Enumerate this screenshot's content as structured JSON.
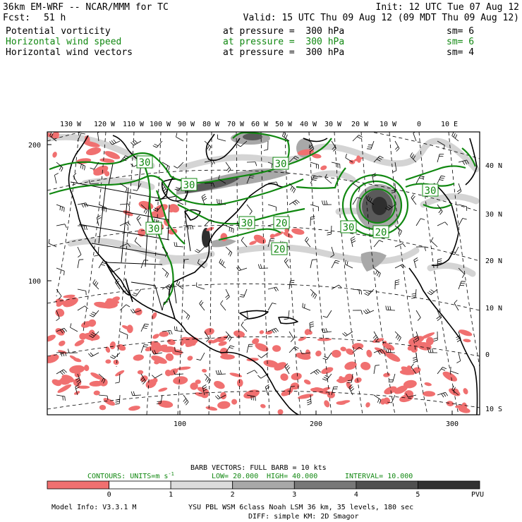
{
  "header": {
    "line1_left": "36km EM-WRF -- NCAR/MMM for TC",
    "line1_right": "Init: 12 UTC Tue 07 Aug 12",
    "fcst_label": "Fcst:",
    "fcst_value": "51 h",
    "valid": "Valid: 15 UTC Thu 09 Aug 12 (09 MDT Thu 09 Aug 12)",
    "fields": [
      {
        "name": "Potential vorticity",
        "level": "at pressure =  300 hPa",
        "sm": "sm= 6",
        "color": "#000000"
      },
      {
        "name": "Horizontal wind speed",
        "level": "at pressure =  300 hPa",
        "sm": "sm= 6",
        "color": "#118811"
      },
      {
        "name": "Horizontal wind vectors",
        "level": "at pressure =  300 hPa",
        "sm": "sm= 4",
        "color": "#000000"
      }
    ]
  },
  "axes": {
    "top_lon_labels": [
      "130 W",
      "120 W",
      "110 W",
      "100 W",
      "90 W",
      "80 W",
      "70 W",
      "60 W",
      "50 W",
      "40 W",
      "30 W",
      "20 W",
      "10 W",
      "0",
      "10 E"
    ],
    "right_lat_labels": [
      "40 N",
      "30 N",
      "20 N",
      "10 N",
      "0",
      "10 S"
    ],
    "left_grid_labels": [
      "200",
      "100"
    ],
    "bottom_grid_labels": [
      "100",
      "200",
      "300"
    ]
  },
  "contour_labels": [
    "30",
    "30",
    "30",
    "30",
    "30",
    "30",
    "20",
    "20",
    "20",
    "30"
  ],
  "legend": {
    "barb_line": "BARB VECTORS:  FULL BARB = 10 kts",
    "contours_label": "CONTOURS:  UNITS=m s",
    "contours_units_sup": "-1",
    "low": "LOW=  20.000",
    "high": "HIGH=  40.000",
    "interval": "INTERVAL=   10.000",
    "colorbar_ticks": [
      "0",
      "1",
      "2",
      "3",
      "4",
      "5"
    ],
    "colorbar_unit": "PVU",
    "colorbar_colors": [
      "#f07070",
      "#ffffff",
      "#dcdcdc",
      "#a8a8a8",
      "#787878",
      "#505050",
      "#323232"
    ],
    "contour_color": "#118811"
  },
  "footer": {
    "model_info": "Model Info: V3.3.1 M",
    "physics": "YSU PBL  WSM 6class  Noah LSM  36 km,   35 levels,  180 sec",
    "diffusion": "DIFF: simple KM: 2D Smagor"
  }
}
